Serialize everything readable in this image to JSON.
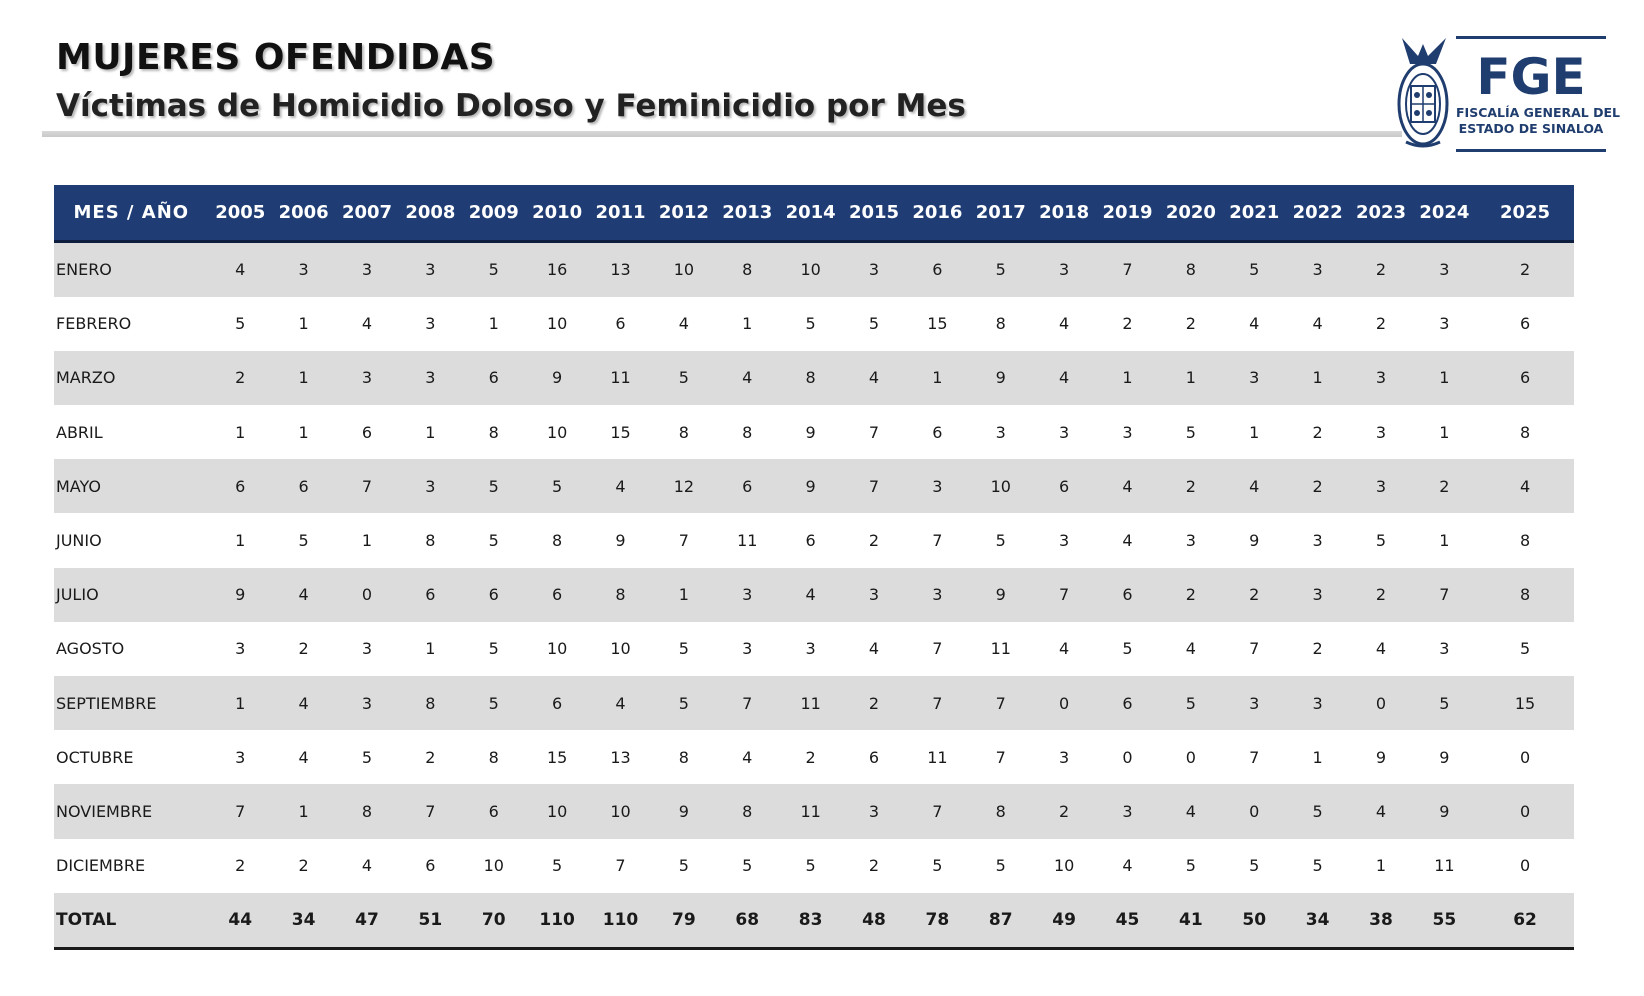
{
  "header": {
    "title": "MUJERES OFENDIDAS",
    "subtitle": "Víctimas de Homicidio Doloso y Feminicidio por Mes"
  },
  "logo": {
    "acronym": "FGE",
    "line1": "FISCALÍA GENERAL DEL",
    "line2": "ESTADO DE SINALOA",
    "color": "#1f3d6e"
  },
  "table": {
    "header_label": "MES /  AÑO",
    "header_color": "#1f3d74",
    "stripe_color": "#dcdcdc",
    "years": [
      "2005",
      "2006",
      "2007",
      "2008",
      "2009",
      "2010",
      "2011",
      "2012",
      "2013",
      "2014",
      "2015",
      "2016",
      "2017",
      "2018",
      "2019",
      "2020",
      "2021",
      "2022",
      "2023",
      "2024",
      "2025"
    ],
    "rows": [
      {
        "month": "ENERO",
        "values": [
          4,
          3,
          3,
          3,
          5,
          16,
          13,
          10,
          8,
          10,
          3,
          6,
          5,
          3,
          7,
          8,
          5,
          3,
          2,
          3,
          2
        ]
      },
      {
        "month": "FEBRERO",
        "values": [
          5,
          1,
          4,
          3,
          1,
          10,
          6,
          4,
          1,
          5,
          5,
          15,
          8,
          4,
          2,
          2,
          4,
          4,
          2,
          3,
          6
        ]
      },
      {
        "month": "MARZO",
        "values": [
          2,
          1,
          3,
          3,
          6,
          9,
          11,
          5,
          4,
          8,
          4,
          1,
          9,
          4,
          1,
          1,
          3,
          1,
          3,
          1,
          6
        ]
      },
      {
        "month": "ABRIL",
        "values": [
          1,
          1,
          6,
          1,
          8,
          10,
          15,
          8,
          8,
          9,
          7,
          6,
          3,
          3,
          3,
          5,
          1,
          2,
          3,
          1,
          8
        ]
      },
      {
        "month": "MAYO",
        "values": [
          6,
          6,
          7,
          3,
          5,
          5,
          4,
          12,
          6,
          9,
          7,
          3,
          10,
          6,
          4,
          2,
          4,
          2,
          3,
          2,
          4
        ]
      },
      {
        "month": "JUNIO",
        "values": [
          1,
          5,
          1,
          8,
          5,
          8,
          9,
          7,
          11,
          6,
          2,
          7,
          5,
          3,
          4,
          3,
          9,
          3,
          5,
          1,
          8
        ]
      },
      {
        "month": "JULIO",
        "values": [
          9,
          4,
          0,
          6,
          6,
          6,
          8,
          1,
          3,
          4,
          3,
          3,
          9,
          7,
          6,
          2,
          2,
          3,
          2,
          7,
          8
        ]
      },
      {
        "month": "AGOSTO",
        "values": [
          3,
          2,
          3,
          1,
          5,
          10,
          10,
          5,
          3,
          3,
          4,
          7,
          11,
          4,
          5,
          4,
          7,
          2,
          4,
          3,
          5
        ]
      },
      {
        "month": "SEPTIEMBRE",
        "values": [
          1,
          4,
          3,
          8,
          5,
          6,
          4,
          5,
          7,
          11,
          2,
          7,
          7,
          0,
          6,
          5,
          3,
          3,
          0,
          5,
          15
        ]
      },
      {
        "month": "OCTUBRE",
        "values": [
          3,
          4,
          5,
          2,
          8,
          15,
          13,
          8,
          4,
          2,
          6,
          11,
          7,
          3,
          0,
          0,
          7,
          1,
          9,
          9,
          0
        ]
      },
      {
        "month": "NOVIEMBRE",
        "values": [
          7,
          1,
          8,
          7,
          6,
          10,
          10,
          9,
          8,
          11,
          3,
          7,
          8,
          2,
          3,
          4,
          0,
          5,
          4,
          9,
          0
        ]
      },
      {
        "month": "DICIEMBRE",
        "values": [
          2,
          2,
          4,
          6,
          10,
          5,
          7,
          5,
          5,
          5,
          2,
          5,
          5,
          10,
          4,
          5,
          5,
          5,
          1,
          11,
          0
        ]
      }
    ],
    "total": {
      "month": "TOTAL",
      "values": [
        44,
        34,
        47,
        51,
        70,
        110,
        110,
        79,
        68,
        83,
        48,
        78,
        87,
        49,
        45,
        41,
        50,
        34,
        38,
        55,
        62
      ]
    }
  }
}
